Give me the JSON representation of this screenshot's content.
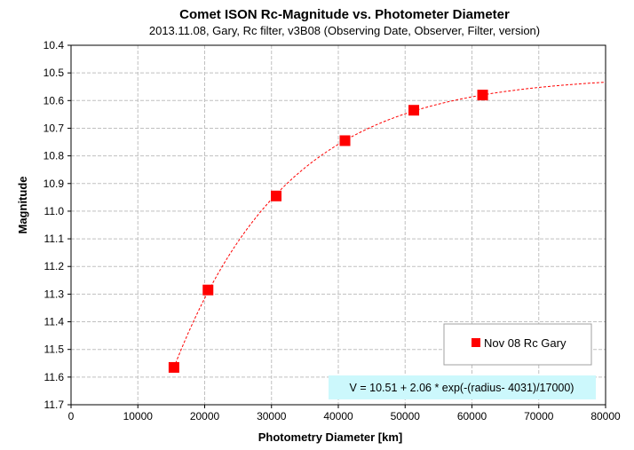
{
  "chart_data": {
    "type": "scatter",
    "title": "Comet ISON Rc-Magnitude  vs. Photometer Diameter",
    "subtitle": "2013.11.08,  Gary,  Rc filter,  v3B08 (Observing Date, Observer, Filter, version)",
    "xlabel": "Photometry Diameter  [km]",
    "ylabel": "Magnitude",
    "xlim": [
      0,
      80000
    ],
    "ylim": [
      10.4,
      11.7
    ],
    "y_reversed": true,
    "grid": true,
    "x_ticks": [
      0,
      10000,
      20000,
      30000,
      40000,
      50000,
      60000,
      70000,
      80000
    ],
    "x_tick_labels": [
      "0",
      "10000",
      "20000",
      "30000",
      "40000",
      "50000",
      "60000",
      "70000",
      "80000"
    ],
    "y_ticks": [
      10.4,
      10.5,
      10.6,
      10.7,
      10.8,
      10.9,
      11.0,
      11.1,
      11.2,
      11.3,
      11.4,
      11.5,
      11.6,
      11.7
    ],
    "y_tick_labels": [
      "10.4",
      "10.5",
      "10.6",
      "10.7",
      "10.8",
      "10.9",
      "11.0",
      "11.1",
      "11.2",
      "11.3",
      "11.4",
      "11.5",
      "11.6",
      "11.7"
    ],
    "legend_position": "lower-right",
    "series": [
      {
        "name": "Nov 08 Rc Gary",
        "marker": "square",
        "color": "#ff0000",
        "x": [
          15400,
          20500,
          30700,
          41000,
          51300,
          61600
        ],
        "y": [
          11.565,
          11.285,
          10.945,
          10.745,
          10.635,
          10.58
        ]
      }
    ],
    "fit": {
      "label": "V = 10.51 + 2.06 * exp(-(radius- 4031)/17000)",
      "style": "dashed",
      "color": "#ff0000",
      "a": 10.51,
      "b": 2.06,
      "x0": 4031,
      "scale": 17000,
      "x_range": [
        15400,
        80000
      ]
    },
    "equation_box_color": "#ccf8fc",
    "plot_background": "#ffffff",
    "grid_color": "#c0c0c0"
  }
}
